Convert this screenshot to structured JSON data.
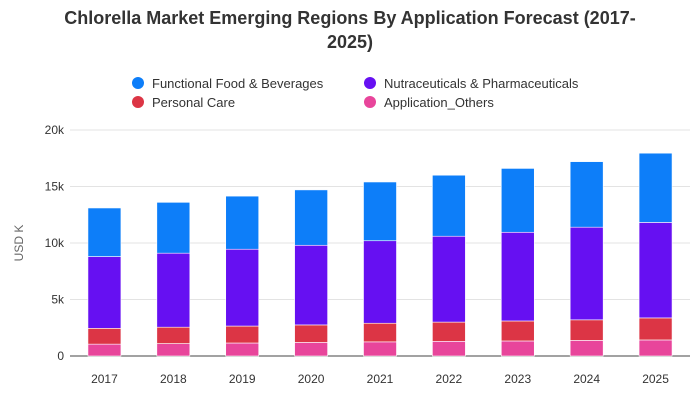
{
  "chart_data": {
    "type": "bar",
    "stacked": true,
    "title": "Chlorella Market Emerging Regions By Application Forecast (2017-2025)",
    "title_lines": [
      "Chlorella Market Emerging Regions By Application Forecast (2017-",
      "2025)"
    ],
    "xlabel": "",
    "ylabel": "USD K",
    "ylim": [
      0,
      20000
    ],
    "yticks": [
      0,
      5000,
      10000,
      15000,
      20000
    ],
    "ytick_labels": [
      "0",
      "5k",
      "10k",
      "15k",
      "20k"
    ],
    "categories": [
      "2017",
      "2018",
      "2019",
      "2020",
      "2021",
      "2022",
      "2023",
      "2024",
      "2025"
    ],
    "legend_position": "top",
    "grid": true,
    "series": [
      {
        "name": "Application_Others",
        "color": "#e8459b",
        "values": [
          1050,
          1100,
          1150,
          1200,
          1250,
          1300,
          1330,
          1380,
          1420
        ]
      },
      {
        "name": "Personal Care",
        "color": "#dc3545",
        "values": [
          1400,
          1450,
          1500,
          1550,
          1650,
          1700,
          1770,
          1820,
          1950
        ]
      },
      {
        "name": "Nutraceuticals & Pharmaceuticals",
        "color": "#6610f2",
        "values": [
          6350,
          6550,
          6800,
          7050,
          7300,
          7600,
          7850,
          8200,
          8450
        ]
      },
      {
        "name": "Functional Food & Beverages",
        "color": "#0d7ef9",
        "values": [
          4300,
          4500,
          4700,
          4900,
          5200,
          5400,
          5650,
          5800,
          6130
        ]
      }
    ],
    "legend_order": [
      "Functional Food & Beverages",
      "Nutraceuticals & Pharmaceuticals",
      "Personal Care",
      "Application_Others"
    ]
  }
}
